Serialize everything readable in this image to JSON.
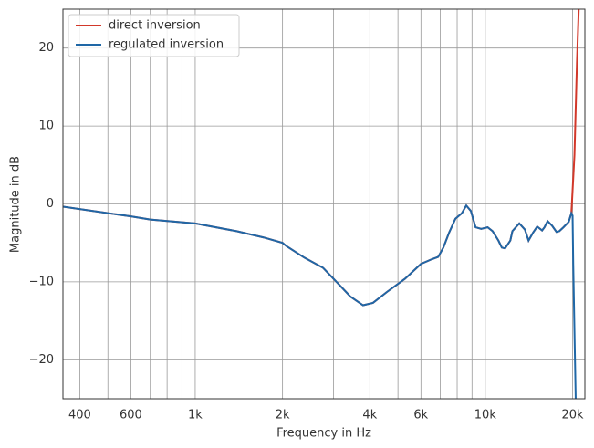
{
  "chart_data": {
    "type": "line",
    "xlabel": "Frequency in Hz",
    "ylabel": "Magnitude in dB",
    "xscale": "log",
    "xlim": [
      350,
      22050
    ],
    "ylim": [
      -25,
      25
    ],
    "xticks": [
      400,
      600,
      {
        "value": 1000,
        "label": "1k"
      },
      {
        "value": 2000,
        "label": "2k"
      },
      {
        "value": 4000,
        "label": "4k"
      },
      {
        "value": 6000,
        "label": "6k"
      },
      {
        "value": 10000,
        "label": "10k"
      },
      {
        "value": 20000,
        "label": "20k"
      }
    ],
    "xminorticks": [
      500,
      700,
      800,
      900,
      3000,
      5000,
      7000,
      8000,
      9000
    ],
    "yticks": [
      {
        "value": -20,
        "label": "−20"
      },
      {
        "value": -10,
        "label": "−10"
      },
      0,
      10,
      20
    ],
    "grid": true,
    "legend": "upper left",
    "series": [
      {
        "name": "direct inversion",
        "color": "#d2382a",
        "x": [
          350,
          600,
          700,
          1000,
          1390,
          1720,
          2000,
          2060,
          2380,
          2760,
          3070,
          3430,
          3790,
          4100,
          4580,
          5290,
          6000,
          6540,
          6880,
          7170,
          7500,
          7890,
          8300,
          8600,
          8920,
          9260,
          9680,
          10190,
          10600,
          11100,
          11400,
          11700,
          12200,
          12400,
          13100,
          13700,
          14100,
          14600,
          15100,
          15700,
          16000,
          16400,
          17000,
          17600,
          18000,
          18600,
          19400,
          19800,
          19900,
          20300,
          20700,
          21000
        ],
        "values": [
          -0.35,
          -1.6,
          -2.0,
          -2.5,
          -3.5,
          -4.3,
          -5.0,
          -5.4,
          -6.9,
          -8.2,
          -10.0,
          -11.9,
          -13.0,
          -12.7,
          -11.3,
          -9.6,
          -7.7,
          -7.1,
          -6.8,
          -5.6,
          -3.7,
          -1.9,
          -1.2,
          -0.2,
          -0.9,
          -3.0,
          -3.2,
          -3.0,
          -3.5,
          -4.7,
          -5.6,
          -5.7,
          -4.7,
          -3.5,
          -2.5,
          -3.3,
          -4.7,
          -3.7,
          -2.9,
          -3.4,
          -3.0,
          -2.2,
          -2.8,
          -3.6,
          -3.5,
          -3.0,
          -2.3,
          -1.2,
          0.2,
          6.3,
          18,
          25
        ]
      },
      {
        "name": "regulated inversion",
        "color": "#1f67a6",
        "x": [
          350,
          600,
          700,
          1000,
          1390,
          1720,
          2000,
          2060,
          2380,
          2760,
          3070,
          3430,
          3790,
          4100,
          4580,
          5290,
          6000,
          6540,
          6880,
          7170,
          7500,
          7890,
          8300,
          8600,
          8920,
          9260,
          9680,
          10190,
          10600,
          11100,
          11400,
          11700,
          12200,
          12400,
          13100,
          13700,
          14100,
          14600,
          15100,
          15700,
          16000,
          16400,
          17000,
          17600,
          18000,
          18600,
          19400,
          19800,
          20000,
          20100,
          20500
        ],
        "values": [
          -0.35,
          -1.6,
          -2.0,
          -2.5,
          -3.5,
          -4.3,
          -5.0,
          -5.4,
          -6.9,
          -8.2,
          -10.0,
          -11.9,
          -13.0,
          -12.7,
          -11.3,
          -9.6,
          -7.7,
          -7.1,
          -6.8,
          -5.6,
          -3.7,
          -1.9,
          -1.2,
          -0.2,
          -0.9,
          -3.0,
          -3.2,
          -3.0,
          -3.5,
          -4.7,
          -5.6,
          -5.7,
          -4.7,
          -3.5,
          -2.5,
          -3.3,
          -4.7,
          -3.7,
          -2.9,
          -3.4,
          -3.0,
          -2.2,
          -2.8,
          -3.6,
          -3.5,
          -3.0,
          -2.3,
          -1.2,
          -1.5,
          -7.7,
          -25
        ]
      }
    ]
  }
}
